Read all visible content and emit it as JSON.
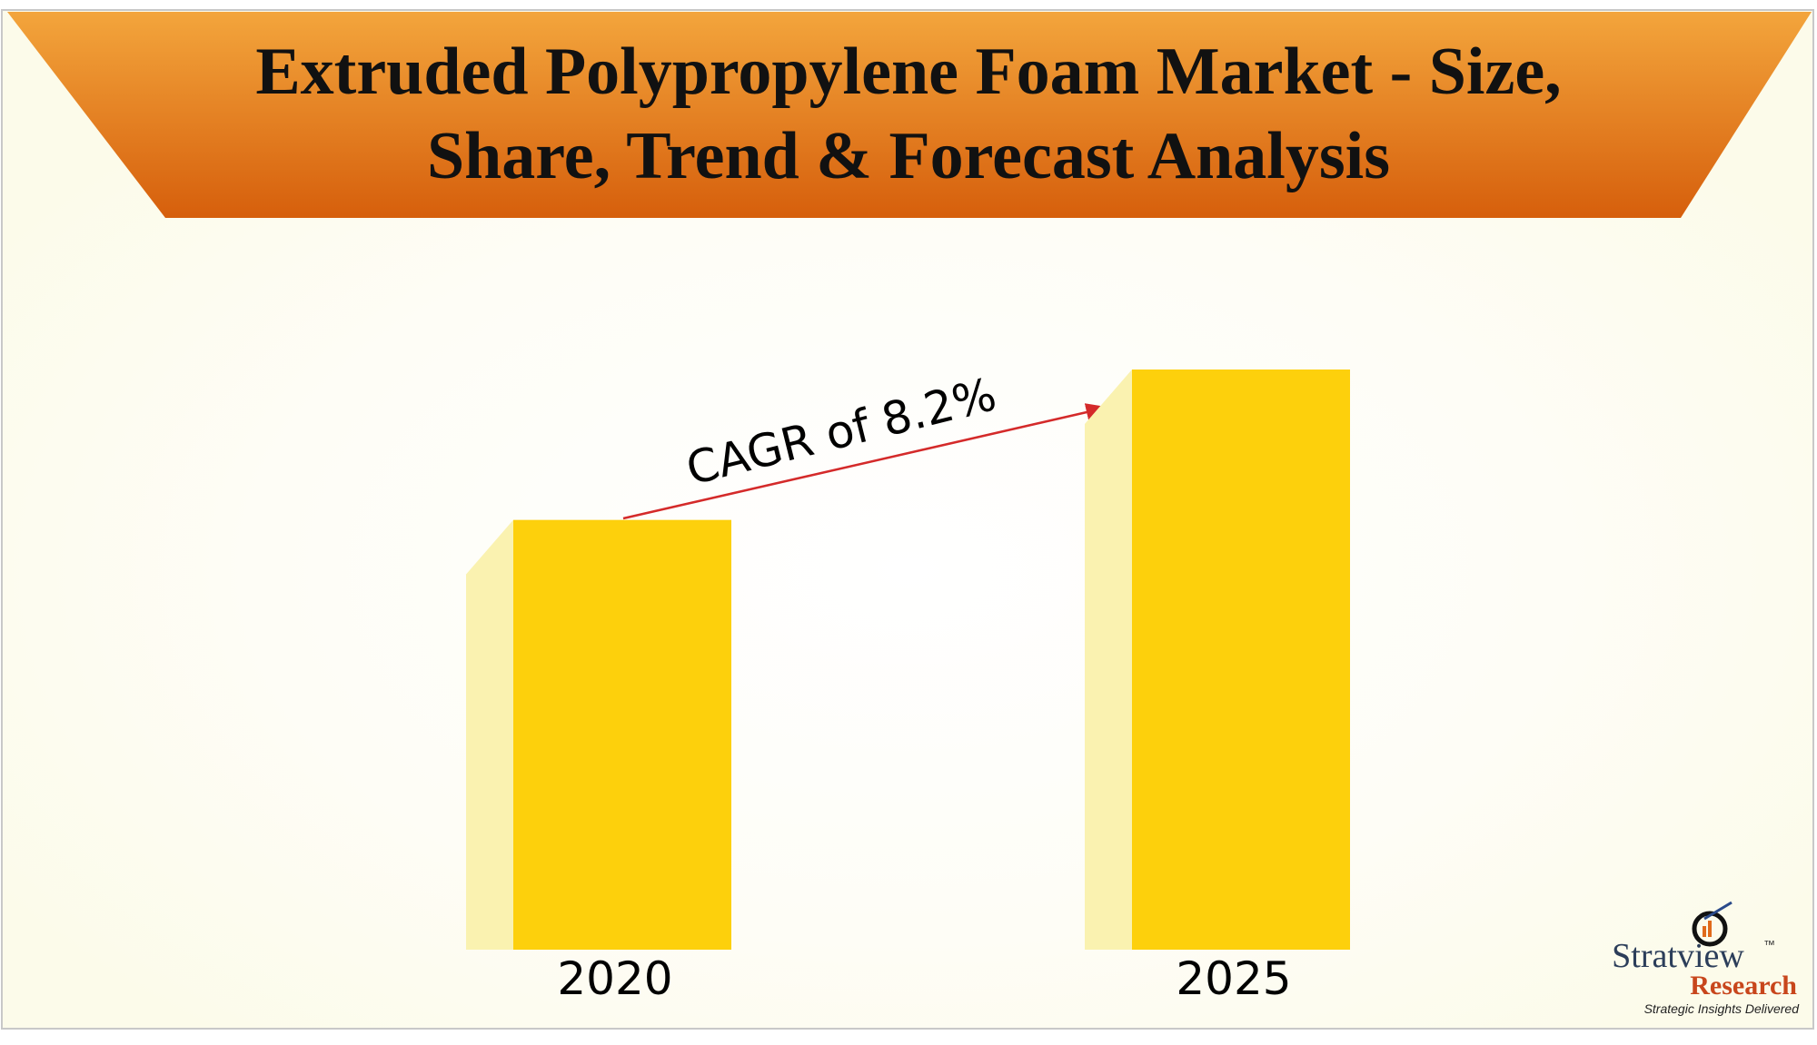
{
  "chart_data": {
    "type": "bar",
    "title": [
      "Extruded Polypropylene Foam Market - Size,",
      "Share, Trend & Forecast Analysis"
    ],
    "categories": [
      "2020",
      "2025"
    ],
    "values": [
      100,
      135
    ],
    "ylim": [
      0,
      135
    ],
    "color": "#fdd00c",
    "annotation": "CAGR of 8.2%"
  },
  "logo": {
    "name": "Stratview",
    "tm": "™",
    "sub": "Research",
    "tagline": "Strategic Insights Delivered"
  }
}
